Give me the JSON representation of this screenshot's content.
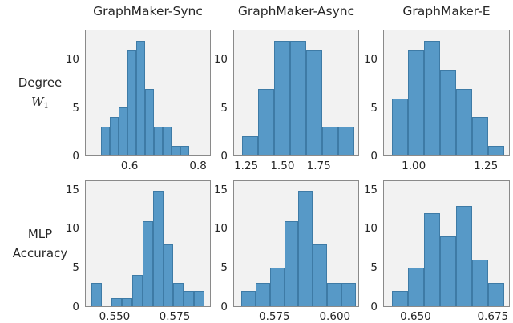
{
  "figure": {
    "kind": "histogram-grid",
    "rows": 2,
    "cols": 3
  },
  "columns": [
    "GraphMaker-Sync",
    "GraphMaker-Async",
    "GraphMaker-E"
  ],
  "row_labels": [
    {
      "line1": "Degree",
      "line2_main": "W",
      "line2_sub": "1"
    },
    {
      "line1": "MLP",
      "line2": "Accuracy"
    }
  ],
  "colors": {
    "bar_fill": "#5799c7",
    "bar_edge": "#3e7ba6",
    "plot_bg": "#f2f2f2",
    "spine": "#8a8a8a",
    "text": "#262626",
    "fig_bg": "#ffffff"
  },
  "chart_data": [
    {
      "type": "bar",
      "subtype": "histogram",
      "row": "Degree W1",
      "column": "GraphMaker-Sync",
      "values": [
        3,
        4,
        5,
        11,
        12,
        7,
        3,
        3,
        1,
        1
      ],
      "bin_start": 0.516,
      "bin_width": 0.026,
      "xlim": [
        0.47,
        0.837
      ],
      "ylim": [
        0,
        13.1
      ],
      "xticks": [
        {
          "v": 0.6,
          "label": "0.6"
        },
        {
          "v": 0.8,
          "label": "0.8"
        }
      ],
      "yticks": [
        {
          "v": 0,
          "label": "0"
        },
        {
          "v": 5,
          "label": "5"
        },
        {
          "v": 10,
          "label": "10"
        }
      ],
      "grid": false,
      "legend": false
    },
    {
      "type": "bar",
      "subtype": "histogram",
      "row": "Degree W1",
      "column": "GraphMaker-Async",
      "values": [
        2,
        7,
        12,
        12,
        11,
        3,
        3
      ],
      "bin_start": 1.217,
      "bin_width": 0.112,
      "xlim": [
        1.161,
        2.028
      ],
      "ylim": [
        0,
        13.1
      ],
      "xticks": [
        {
          "v": 1.25,
          "label": "1.25"
        },
        {
          "v": 1.5,
          "label": "1.50"
        },
        {
          "v": 1.75,
          "label": "1.75"
        }
      ],
      "yticks": [
        {
          "v": 0,
          "label": "0"
        },
        {
          "v": 5,
          "label": "5"
        },
        {
          "v": 10,
          "label": "10"
        }
      ],
      "grid": false,
      "legend": false
    },
    {
      "type": "bar",
      "subtype": "histogram",
      "row": "Degree W1",
      "column": "GraphMaker-E",
      "values": [
        6,
        11,
        12,
        9,
        7,
        4,
        1
      ],
      "bin_start": 0.922,
      "bin_width": 0.0565,
      "xlim": [
        0.894,
        1.333
      ],
      "ylim": [
        0,
        13.1
      ],
      "xticks": [
        {
          "v": 1.0,
          "label": "1.00"
        },
        {
          "v": 1.25,
          "label": "1.25"
        }
      ],
      "yticks": [
        {
          "v": 0,
          "label": "0"
        },
        {
          "v": 5,
          "label": "5"
        },
        {
          "v": 10,
          "label": "10"
        }
      ],
      "grid": false,
      "legend": false
    },
    {
      "type": "bar",
      "subtype": "histogram",
      "row": "MLP Accuracy",
      "column": "GraphMaker-Sync",
      "values": [
        3,
        0,
        1,
        1,
        4,
        11,
        15,
        8,
        3,
        2,
        2
      ],
      "bin_start": 0.54,
      "bin_width": 0.00433,
      "xlim": [
        0.5377,
        0.59
      ],
      "ylim": [
        0,
        16.2
      ],
      "xticks": [
        {
          "v": 0.55,
          "label": "0.550"
        },
        {
          "v": 0.575,
          "label": "0.575"
        }
      ],
      "yticks": [
        {
          "v": 0,
          "label": "0"
        },
        {
          "v": 5,
          "label": "5"
        },
        {
          "v": 10,
          "label": "10"
        },
        {
          "v": 15,
          "label": "15"
        }
      ],
      "grid": false,
      "legend": false
    },
    {
      "type": "bar",
      "subtype": "histogram",
      "row": "MLP Accuracy",
      "column": "GraphMaker-Async",
      "values": [
        2,
        3,
        5,
        11,
        15,
        8,
        3,
        3
      ],
      "bin_start": 0.561,
      "bin_width": 0.006,
      "xlim": [
        0.558,
        0.61
      ],
      "ylim": [
        0,
        16.2
      ],
      "xticks": [
        {
          "v": 0.575,
          "label": "0.575"
        },
        {
          "v": 0.6,
          "label": "0.600"
        }
      ],
      "yticks": [
        {
          "v": 0,
          "label": "0"
        },
        {
          "v": 5,
          "label": "5"
        },
        {
          "v": 10,
          "label": "10"
        },
        {
          "v": 15,
          "label": "15"
        }
      ],
      "grid": false,
      "legend": false
    },
    {
      "type": "bar",
      "subtype": "histogram",
      "row": "MLP Accuracy",
      "column": "GraphMaker-E",
      "values": [
        2,
        5,
        12,
        9,
        13,
        6,
        3
      ],
      "bin_start": 0.642,
      "bin_width": 0.00526,
      "xlim": [
        0.6395,
        0.6805
      ],
      "ylim": [
        0,
        16.2
      ],
      "xticks": [
        {
          "v": 0.65,
          "label": "0.650"
        },
        {
          "v": 0.675,
          "label": "0.675"
        }
      ],
      "yticks": [
        {
          "v": 0,
          "label": "0"
        },
        {
          "v": 5,
          "label": "5"
        },
        {
          "v": 10,
          "label": "10"
        },
        {
          "v": 15,
          "label": "15"
        }
      ],
      "grid": false,
      "legend": false
    }
  ]
}
